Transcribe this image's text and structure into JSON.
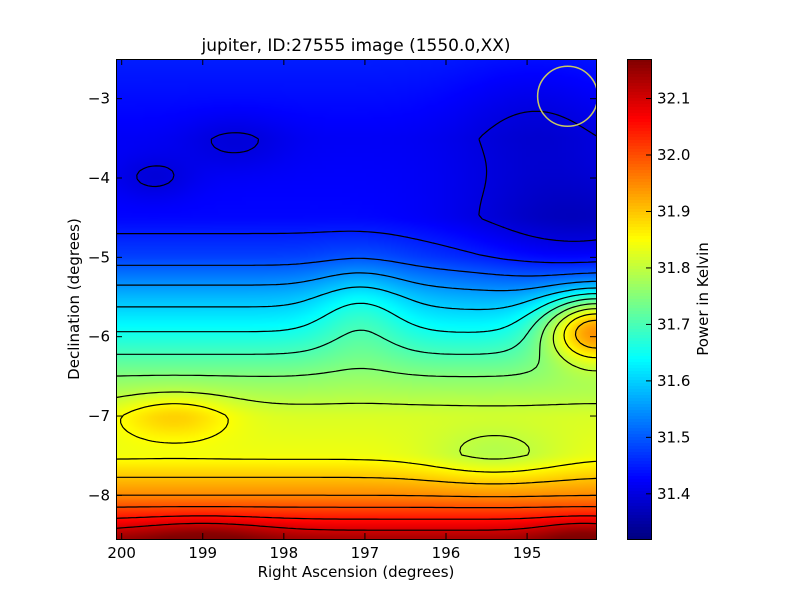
{
  "chart_data": {
    "type": "heatmap",
    "title": "jupiter, ID:27555 image (1550.0,XX)",
    "xlabel": "Right Ascension (degrees)",
    "ylabel": "Declination (degrees)",
    "colorbar_label": "Power in Kelvin",
    "xlim": [
      200.07,
      194.15
    ],
    "ylim": [
      -8.55,
      -2.5
    ],
    "x_ticks": [
      {
        "value": 200,
        "label": "200"
      },
      {
        "value": 199,
        "label": "199"
      },
      {
        "value": 198,
        "label": "198"
      },
      {
        "value": 197,
        "label": "197"
      },
      {
        "value": 196,
        "label": "196"
      },
      {
        "value": 195,
        "label": "195"
      }
    ],
    "y_ticks": [
      {
        "value": -3,
        "label": "−3"
      },
      {
        "value": -4,
        "label": "−4"
      },
      {
        "value": -5,
        "label": "−5"
      },
      {
        "value": -6,
        "label": "−6"
      },
      {
        "value": -7,
        "label": "−7"
      },
      {
        "value": -8,
        "label": "−8"
      }
    ],
    "color_range": [
      31.32,
      32.17
    ],
    "colormap": "jet",
    "colorbar_ticks": [
      {
        "value": 31.4,
        "label": "31.4"
      },
      {
        "value": 31.5,
        "label": "31.5"
      },
      {
        "value": 31.6,
        "label": "31.6"
      },
      {
        "value": 31.7,
        "label": "31.7"
      },
      {
        "value": 31.8,
        "label": "31.8"
      },
      {
        "value": 31.9,
        "label": "31.9"
      },
      {
        "value": 32.0,
        "label": "32.0"
      },
      {
        "value": 32.1,
        "label": "32.1"
      }
    ],
    "field": {
      "dec_profile": [
        [
          -2.5,
          31.45
        ],
        [
          -3.5,
          31.42
        ],
        [
          -4.5,
          31.43
        ],
        [
          -5.0,
          31.48
        ],
        [
          -5.5,
          31.58
        ],
        [
          -6.0,
          31.66
        ],
        [
          -6.5,
          31.75
        ],
        [
          -7.0,
          31.82
        ],
        [
          -7.5,
          31.84
        ],
        [
          -8.0,
          31.95
        ],
        [
          -8.3,
          32.05
        ],
        [
          -8.55,
          32.14
        ]
      ],
      "features": [
        {
          "ra": 194.4,
          "dec": -4.7,
          "sx": 1.0,
          "sy": 0.55,
          "amp": -0.06
        },
        {
          "ra": 194.9,
          "dec": -3.3,
          "sx": 0.7,
          "sy": 0.6,
          "amp": -0.03
        },
        {
          "ra": 194.15,
          "dec": -5.9,
          "sx": 0.45,
          "sy": 0.3,
          "amp": 0.3
        },
        {
          "ra": 197.05,
          "dec": -5.7,
          "sx": 0.4,
          "sy": 0.45,
          "amp": 0.06
        },
        {
          "ra": 199.35,
          "dec": -7.0,
          "sx": 0.5,
          "sy": 0.2,
          "amp": 0.07
        },
        {
          "ra": 195.4,
          "dec": -7.5,
          "sx": 0.6,
          "sy": 0.25,
          "amp": -0.05
        },
        {
          "ra": 199.6,
          "dec": -4.0,
          "sx": 0.35,
          "sy": 0.2,
          "amp": -0.03
        },
        {
          "ra": 198.6,
          "dec": -3.55,
          "sx": 0.45,
          "sy": 0.25,
          "amp": -0.025
        },
        {
          "ra": 199.0,
          "dec": -8.5,
          "sx": 0.6,
          "sy": 0.15,
          "amp": 0.05
        },
        {
          "ra": 194.3,
          "dec": -8.5,
          "sx": 0.4,
          "sy": 0.15,
          "amp": 0.05
        }
      ],
      "contour_levels": [
        31.4,
        31.45,
        31.5,
        31.55,
        31.6,
        31.65,
        31.7,
        31.75,
        31.8,
        31.85,
        31.9,
        31.95,
        32.0,
        32.05,
        32.1
      ]
    },
    "beam_marker": {
      "ra": 194.5,
      "dec": -2.97,
      "radius_deg": 0.37,
      "color": "#c8c864"
    }
  }
}
